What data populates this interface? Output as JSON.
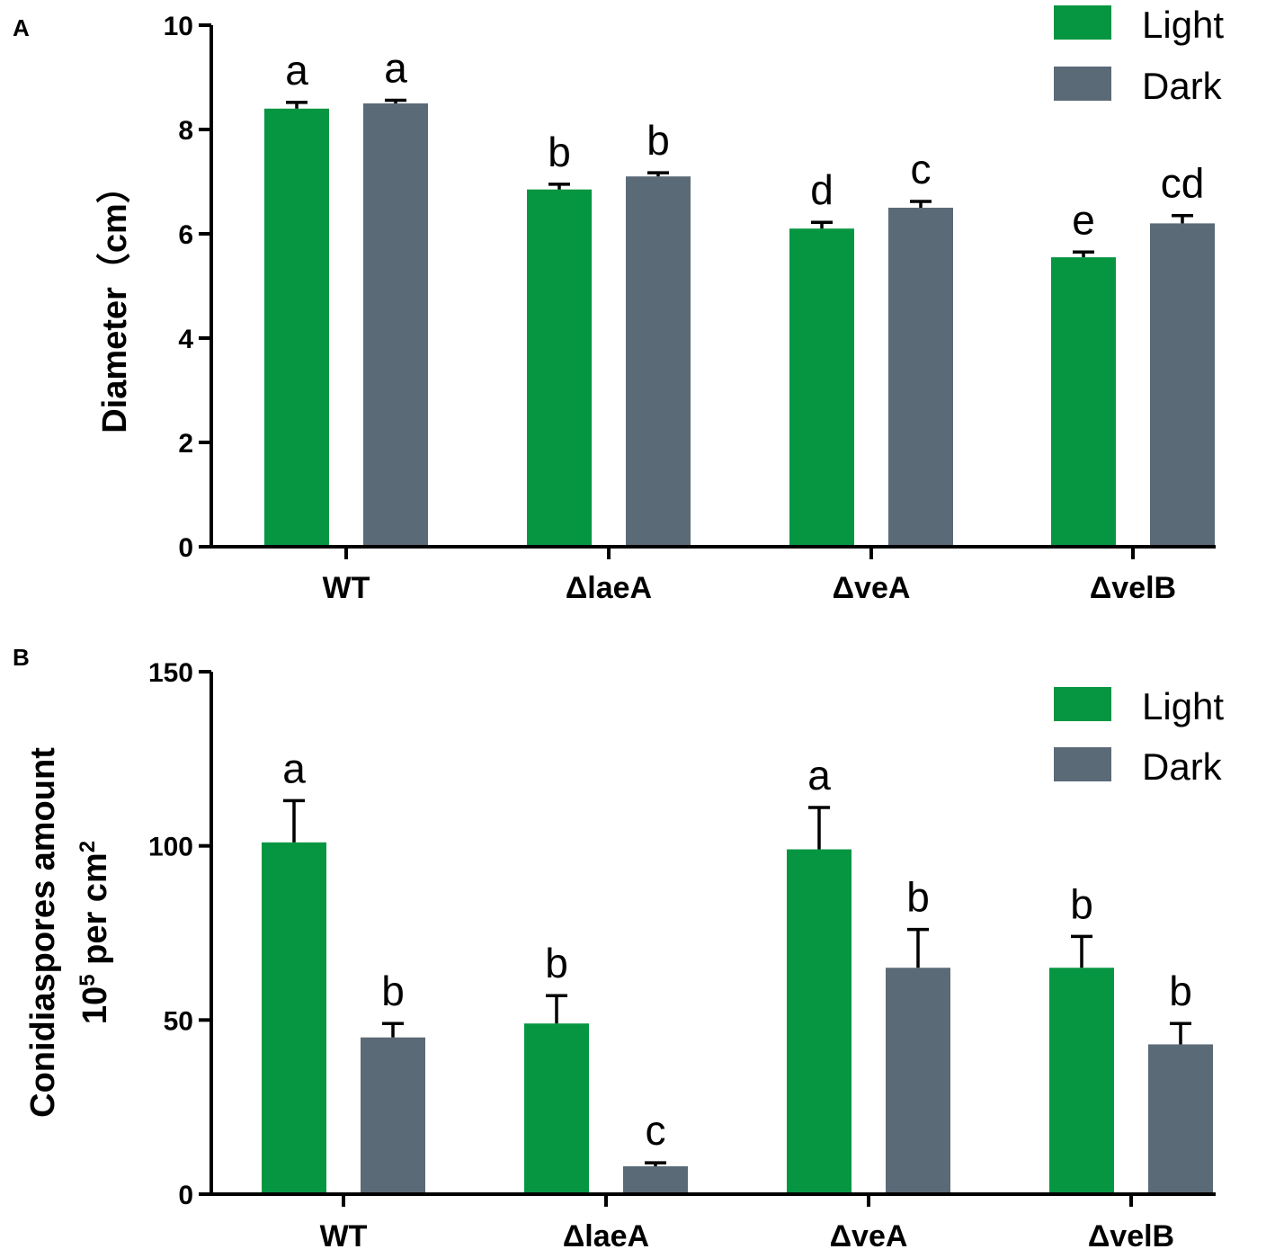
{
  "chart_data": [
    {
      "panel": "A",
      "type": "bar",
      "categories": [
        "WT",
        "ΔlaeA",
        "ΔveA",
        "ΔvelB"
      ],
      "series": [
        {
          "name": "Light",
          "color": "#069642",
          "values": [
            8.4,
            6.85,
            6.1,
            5.55
          ],
          "errors": [
            0.12,
            0.1,
            0.12,
            0.1
          ],
          "letters": [
            "a",
            "b",
            "d",
            "e"
          ]
        },
        {
          "name": "Dark",
          "color": "#5b6a77",
          "values": [
            8.5,
            7.1,
            6.5,
            6.2
          ],
          "errors": [
            0.06,
            0.07,
            0.12,
            0.15
          ],
          "letters": [
            "a",
            "b",
            "c",
            "cd"
          ]
        }
      ],
      "ylabel_parts": [
        "Diameter",
        "（cm）"
      ],
      "ylim": [
        0,
        10
      ],
      "yticks": [
        "0",
        "2",
        "4",
        "6",
        "8",
        "10"
      ],
      "legend_position": "top-right"
    },
    {
      "panel": "B",
      "type": "bar",
      "categories": [
        "WT",
        "ΔlaeA",
        "ΔveA",
        "ΔvelB"
      ],
      "series": [
        {
          "name": "Light",
          "color": "#069642",
          "values": [
            101,
            49,
            99,
            65
          ],
          "errors": [
            12,
            8,
            12,
            9
          ],
          "letters": [
            "a",
            "b",
            "a",
            "b"
          ]
        },
        {
          "name": "Dark",
          "color": "#5b6a77",
          "values": [
            45,
            8,
            65,
            43
          ],
          "errors": [
            4,
            1,
            11,
            6
          ],
          "letters": [
            "b",
            "c",
            "b",
            "b"
          ]
        }
      ],
      "ylabel_line1": "Conidiaspores amount",
      "ylabel_line2_parts": [
        "10",
        "5",
        " per cm",
        "2"
      ],
      "ylim": [
        0,
        150
      ],
      "yticks": [
        "0",
        "50",
        "100",
        "150"
      ],
      "legend_position": "top-right"
    }
  ]
}
